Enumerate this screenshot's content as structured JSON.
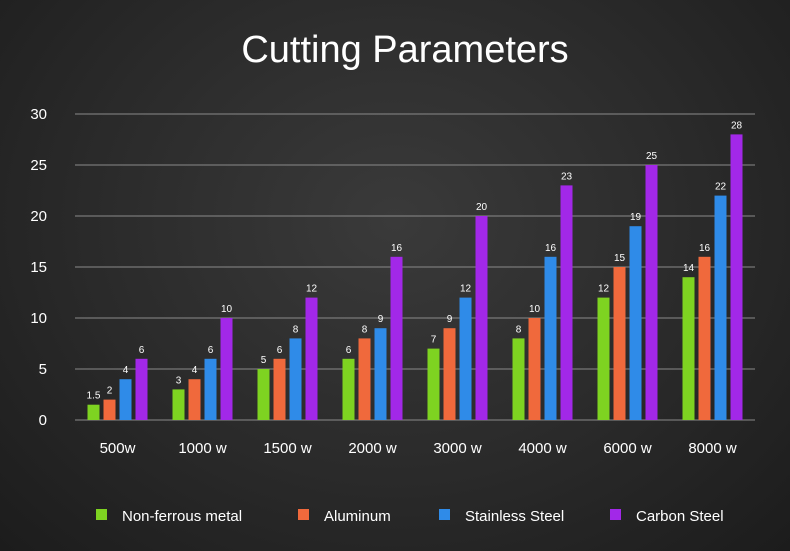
{
  "chart_data": {
    "type": "bar",
    "title": "Cutting Parameters",
    "xlabel": "",
    "ylabel": "",
    "ylim": [
      0,
      30
    ],
    "yticks": [
      0,
      5,
      10,
      15,
      20,
      25,
      30
    ],
    "grid": true,
    "legend_position": "bottom",
    "categories": [
      "500w",
      "1000 w",
      "1500 w",
      "2000 w",
      "3000 w",
      "4000 w",
      "6000 w",
      "8000 w"
    ],
    "series": [
      {
        "name": "Non-ferrous metal",
        "color": "#7ed321",
        "values": [
          1.5,
          3,
          5,
          6,
          7,
          8,
          12,
          14
        ],
        "labels": [
          "1.5",
          "3",
          "5",
          "6",
          "7",
          "8",
          "12",
          "14"
        ]
      },
      {
        "name": "Aluminum",
        "color": "#f0693c",
        "values": [
          2,
          4,
          6,
          8,
          9,
          10,
          15,
          16
        ],
        "labels": [
          "2",
          "4",
          "6",
          "8",
          "9",
          "10",
          "15",
          "16"
        ]
      },
      {
        "name": "Stainless Steel",
        "color": "#2f8be8",
        "values": [
          4,
          6,
          8,
          9,
          12,
          16,
          19,
          22
        ],
        "labels": [
          "4",
          "6",
          "8",
          "9",
          "12",
          "16",
          "19",
          "22"
        ]
      },
      {
        "name": "Carbon Steel",
        "color": "#a228e8",
        "values": [
          6,
          10,
          12,
          16,
          20,
          23,
          25,
          28
        ],
        "labels": [
          "6",
          "10",
          "12",
          "16",
          "20",
          "23",
          "25",
          "28"
        ]
      }
    ]
  }
}
